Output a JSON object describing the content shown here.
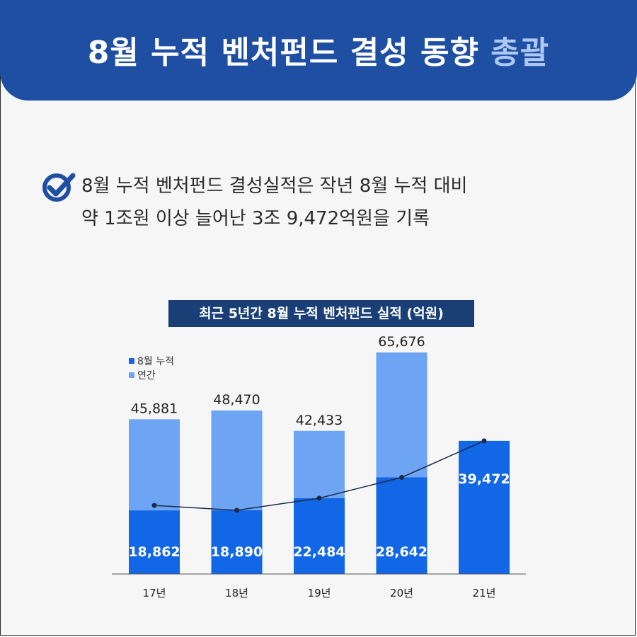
{
  "header": {
    "title_main": "8월 누적 벤처펀드 결성 동향 ",
    "title_accent": "총괄"
  },
  "summary": {
    "icon": "check-circle-icon",
    "line1": "8월 누적 벤처펀드 결성실적은 작년 8월 누적 대비",
    "line2": "약 1조원 이상 늘어난 3조 9,472억원을 기록"
  },
  "colors": {
    "header_bg": "#1e4fa3",
    "monthly": "#1167e6",
    "annual": "#6ea4f4",
    "title_bar": "#1a3f77",
    "line": "#1c2a44"
  },
  "chart_data": {
    "type": "bar",
    "title": "최근 5년간 8월 누적 벤처펀드 실적 (억원)",
    "categories": [
      "17년",
      "18년",
      "19년",
      "20년",
      "21년"
    ],
    "series": [
      {
        "name": "8월 누적",
        "values": [
          18862,
          18890,
          22484,
          28642,
          39472
        ]
      },
      {
        "name": "연간",
        "values": [
          45881,
          48470,
          42433,
          65676,
          null
        ]
      }
    ],
    "value_labels": {
      "monthly": [
        "18,862",
        "18,890",
        "22,484",
        "28,642",
        "39,472"
      ],
      "annual": [
        "45,881",
        "48,470",
        "42,433",
        "65,676",
        ""
      ]
    },
    "line_overlay": "8월 누적",
    "ylim": [
      0,
      65676
    ],
    "grid": false,
    "legend_position": "top-left"
  }
}
